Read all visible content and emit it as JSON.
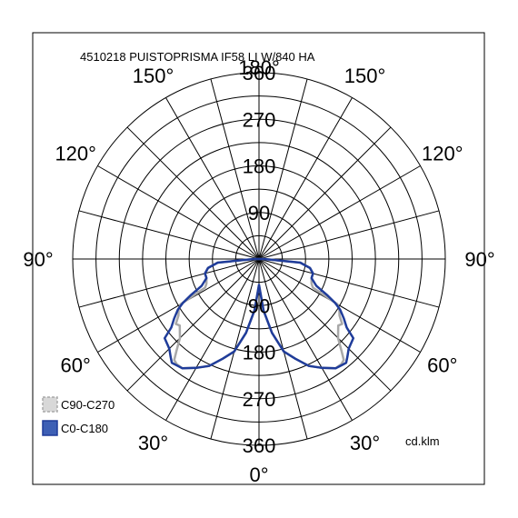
{
  "chart_data": {
    "type": "polar",
    "title": "4510218 PUISTOPRISMA IF58 LI W/840 HA",
    "unit": "cd.klm",
    "radial_ticks": [
      90,
      180,
      270,
      360
    ],
    "radial_max": 360,
    "angle_labels": [
      "0°",
      "30°",
      "60°",
      "90°",
      "120°",
      "150°",
      "180°",
      "150°",
      "120°",
      "90°",
      "60°",
      "30°"
    ],
    "colors": {
      "c0": "#1f3c9a",
      "c90": "#a8a8a8",
      "c0_fill": "#3d5fb5",
      "c90_fill": "#d8d8d8"
    },
    "series": [
      {
        "name": "C90-C270",
        "angles": [
          0,
          5,
          10,
          15,
          20,
          25,
          30,
          35,
          38,
          40,
          42,
          45,
          50,
          52,
          55,
          58,
          60,
          62,
          65,
          70,
          75,
          80,
          85,
          90
        ],
        "values": [
          50,
          100,
          145,
          185,
          205,
          228,
          243,
          258,
          258,
          255,
          238,
          216,
          200,
          204,
          190,
          183,
          175,
          118,
          112,
          108,
          108,
          100,
          80,
          10
        ]
      },
      {
        "name": "C0-C180",
        "angles": [
          0,
          5,
          10,
          15,
          20,
          25,
          30,
          35,
          38,
          40,
          42,
          45,
          50,
          52,
          55,
          58,
          60,
          62,
          65,
          70,
          75,
          80,
          85,
          90
        ],
        "values": [
          50,
          100,
          145,
          185,
          205,
          228,
          243,
          258,
          260,
          262,
          255,
          245,
          238,
          215,
          200,
          185,
          170,
          150,
          122,
          108,
          108,
          100,
          80,
          10
        ]
      }
    ]
  }
}
